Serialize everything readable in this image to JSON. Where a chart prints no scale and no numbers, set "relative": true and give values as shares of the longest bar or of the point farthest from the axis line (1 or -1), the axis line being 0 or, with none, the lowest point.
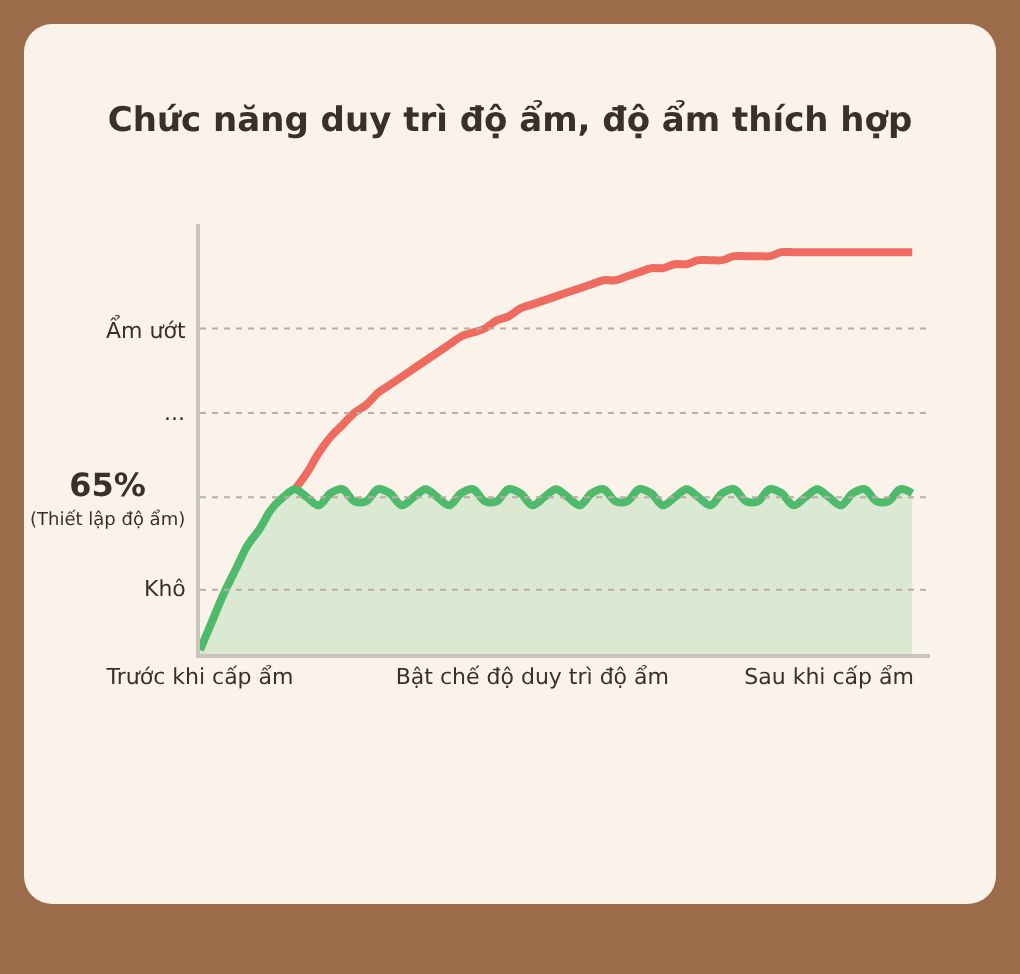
{
  "chart_data": {
    "type": "line",
    "title": "Chức năng duy trì độ ẩm, độ ẩm thích hợp",
    "relative": true,
    "grid": false,
    "marker": "none",
    "line_style": "solid",
    "categories": [
      "Trước khi cấp ẩm",
      null,
      null,
      null,
      null,
      null,
      null,
      null,
      null,
      null,
      null,
      null,
      null,
      null,
      null,
      null,
      null,
      null,
      null,
      null,
      null,
      null,
      null,
      null,
      null,
      null,
      null,
      null,
      "Bật chế độ duy trì độ ẩm",
      null,
      null,
      null,
      null,
      null,
      null,
      null,
      null,
      null,
      null,
      null,
      null,
      null,
      null,
      null,
      null,
      null,
      null,
      null,
      null,
      null,
      null,
      null,
      null,
      "Sau khi cấp ẩm",
      null,
      null,
      null,
      null,
      null,
      null,
      null
    ],
    "series": [
      {
        "color": "#ef6b5f",
        "values": [
          null,
          null,
          null,
          null,
          null,
          null,
          null,
          null,
          0.41,
          0.45,
          0.5,
          0.54,
          0.57,
          0.6,
          0.62,
          0.65,
          0.67,
          0.69,
          0.71,
          0.73,
          0.75,
          0.77,
          0.79,
          0.8,
          0.81,
          0.83,
          0.84,
          0.86,
          0.87,
          0.88,
          0.89,
          0.9,
          0.91,
          0.92,
          0.93,
          0.93,
          0.94,
          0.95,
          0.96,
          0.96,
          0.97,
          0.97,
          0.98,
          0.98,
          0.98,
          0.99,
          0.99,
          0.99,
          0.99,
          1.0,
          1.0,
          1.0,
          1.0,
          1.0,
          1.0,
          1.0,
          1.0,
          1.0,
          1.0,
          1.0,
          1.0
        ]
      },
      {
        "type": "area",
        "color": "#4dbb6b",
        "values": [
          0.01,
          0.08,
          0.15,
          0.21,
          0.27,
          0.31,
          0.36,
          0.39,
          0.41,
          0.39,
          0.37,
          0.4,
          0.41,
          0.38,
          0.38,
          0.41,
          0.4,
          0.37,
          0.39,
          0.41,
          0.39,
          0.37,
          0.4,
          0.41,
          0.38,
          0.38,
          0.41,
          0.4,
          0.37,
          0.39,
          0.41,
          0.39,
          0.37,
          0.4,
          0.41,
          0.38,
          0.38,
          0.41,
          0.4,
          0.37,
          0.39,
          0.41,
          0.39,
          0.37,
          0.4,
          0.41,
          0.38,
          0.38,
          0.41,
          0.4,
          0.37,
          0.39,
          0.41,
          0.39,
          0.37,
          0.4,
          0.41,
          0.38,
          0.38,
          0.41,
          0.4
        ]
      }
    ],
    "ref_lines": [
      {
        "axis": "y",
        "value": 0.16,
        "label": "Khô"
      },
      {
        "axis": "y",
        "value": 0.39,
        "label": "65%\n(Thiết lập độ ẩm)"
      },
      {
        "axis": "y",
        "value": 0.6,
        "label": "..."
      },
      {
        "axis": "y",
        "value": 0.81,
        "label": "Ẩm ướt"
      }
    ]
  }
}
